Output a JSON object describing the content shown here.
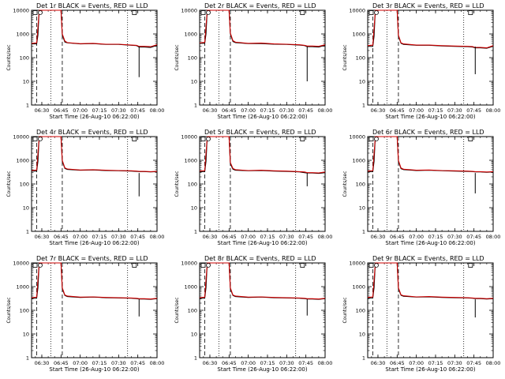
{
  "chart_data": [
    {
      "type": "line",
      "title": "Det 1r BLACK = Events, RED = LLD",
      "xlabel": "Start Time (26-Aug-10 06:22:00)",
      "ylabel": "Counts/sec",
      "x_ticks": [
        "06:30",
        "06:45",
        "07:00",
        "07:15",
        "07:30",
        "07:45",
        "08:00"
      ],
      "y_ticks": [
        "1",
        "10",
        "100",
        "1000",
        "10000"
      ],
      "y_scale": "log",
      "ylim": [
        1,
        10000
      ],
      "x": [
        "06:22",
        "06:26",
        "06:27",
        "06:28",
        "06:30",
        "06:40",
        "06:45",
        "06:46",
        "06:48",
        "06:50",
        "07:00",
        "07:10",
        "07:20",
        "07:30",
        "07:40",
        "07:44",
        "07:46",
        "07:50",
        "07:55",
        "08:00"
      ],
      "series": [
        {
          "name": "Events",
          "color": "#000000",
          "values": [
            380,
            380,
            900,
            10000,
            10000,
            10000,
            10000,
            900,
            450,
            420,
            380,
            390,
            360,
            360,
            330,
            320,
            280,
            280,
            270,
            330
          ]
        },
        {
          "name": "LLD",
          "color": "#cc0000",
          "values": [
            400,
            420,
            2000,
            10000,
            10000,
            10000,
            10000,
            1000,
            500,
            430,
            390,
            400,
            370,
            370,
            340,
            330,
            300,
            300,
            290,
            350
          ]
        }
      ],
      "dip": {
        "x": "07:46",
        "y": 15
      },
      "dotted_lines": [
        "06:37",
        "07:37"
      ],
      "dashed_lines": [
        "06:26",
        "06:46"
      ]
    },
    {
      "type": "line",
      "title": "Det 2r BLACK = Events, RED = LLD",
      "xlabel": "Start Time (26-Aug-10 06:22:00)",
      "ylabel": "Counts/sec",
      "x_ticks": [
        "06:30",
        "06:45",
        "07:00",
        "07:15",
        "07:30",
        "07:45",
        "08:00"
      ],
      "y_ticks": [
        "1",
        "10",
        "100",
        "1000",
        "10000"
      ],
      "y_scale": "log",
      "ylim": [
        1,
        10000
      ],
      "x": [
        "06:22",
        "06:26",
        "06:27",
        "06:28",
        "06:30",
        "06:40",
        "06:45",
        "06:46",
        "06:48",
        "06:50",
        "07:00",
        "07:10",
        "07:20",
        "07:30",
        "07:40",
        "07:44",
        "07:46",
        "07:50",
        "07:55",
        "08:00"
      ],
      "series": [
        {
          "name": "Events",
          "color": "#000000",
          "values": [
            400,
            400,
            1000,
            10000,
            10000,
            10000,
            10000,
            1000,
            480,
            430,
            390,
            390,
            370,
            360,
            340,
            320,
            290,
            290,
            280,
            330
          ]
        },
        {
          "name": "LLD",
          "color": "#cc0000",
          "values": [
            420,
            440,
            2200,
            10000,
            10000,
            10000,
            10000,
            1100,
            520,
            450,
            400,
            410,
            380,
            370,
            350,
            330,
            310,
            310,
            300,
            350
          ]
        }
      ],
      "dip": {
        "x": "07:46",
        "y": 10
      },
      "dotted_lines": [
        "06:37",
        "07:37"
      ],
      "dashed_lines": [
        "06:26",
        "06:46"
      ]
    },
    {
      "type": "line",
      "title": "Det 3r BLACK = Events, RED = LLD",
      "xlabel": "Start Time (26-Aug-10 06:22:00)",
      "ylabel": "Counts/sec",
      "x_ticks": [
        "06:30",
        "06:45",
        "07:00",
        "07:15",
        "07:30",
        "07:45",
        "08:00"
      ],
      "y_ticks": [
        "1",
        "10",
        "100",
        "1000",
        "10000"
      ],
      "y_scale": "log",
      "ylim": [
        1,
        10000
      ],
      "x": [
        "06:22",
        "06:26",
        "06:27",
        "06:28",
        "06:30",
        "06:40",
        "06:45",
        "06:46",
        "06:48",
        "06:50",
        "07:00",
        "07:10",
        "07:20",
        "07:30",
        "07:40",
        "07:44",
        "07:46",
        "07:50",
        "07:55",
        "08:00"
      ],
      "series": [
        {
          "name": "Events",
          "color": "#000000",
          "values": [
            300,
            300,
            800,
            10000,
            10000,
            10000,
            10000,
            800,
            400,
            360,
            330,
            330,
            310,
            300,
            290,
            280,
            260,
            260,
            250,
            300
          ]
        },
        {
          "name": "LLD",
          "color": "#cc0000",
          "values": [
            320,
            340,
            1800,
            10000,
            10000,
            10000,
            10000,
            900,
            420,
            380,
            340,
            340,
            320,
            310,
            300,
            290,
            270,
            270,
            260,
            320
          ]
        }
      ],
      "dip": {
        "x": "07:46",
        "y": 20
      },
      "dotted_lines": [
        "06:37",
        "07:37"
      ],
      "dashed_lines": [
        "06:26",
        "06:46"
      ]
    },
    {
      "type": "line",
      "title": "Det 4r BLACK = Events, RED = LLD",
      "xlabel": "Start Time (26-Aug-10 06:22:00)",
      "ylabel": "Counts/sec",
      "x_ticks": [
        "06:30",
        "06:45",
        "07:00",
        "07:15",
        "07:30",
        "07:45",
        "08:00"
      ],
      "y_ticks": [
        "1",
        "10",
        "100",
        "1000",
        "10000"
      ],
      "y_scale": "log",
      "ylim": [
        1,
        10000
      ],
      "x": [
        "06:22",
        "06:26",
        "06:27",
        "06:28",
        "06:30",
        "06:40",
        "06:45",
        "06:46",
        "06:48",
        "06:50",
        "07:00",
        "07:10",
        "07:20",
        "07:30",
        "07:40",
        "07:44",
        "07:46",
        "07:50",
        "07:55",
        "08:00"
      ],
      "series": [
        {
          "name": "Events",
          "color": "#000000",
          "values": [
            350,
            350,
            900,
            10000,
            10000,
            10000,
            10000,
            900,
            450,
            410,
            380,
            390,
            370,
            360,
            350,
            340,
            330,
            330,
            320,
            330
          ]
        },
        {
          "name": "LLD",
          "color": "#cc0000",
          "values": [
            370,
            390,
            2000,
            10000,
            10000,
            10000,
            10000,
            1000,
            480,
            430,
            390,
            400,
            380,
            370,
            360,
            350,
            340,
            340,
            330,
            340
          ]
        }
      ],
      "dip": {
        "x": "07:46",
        "y": 30
      },
      "dotted_lines": [
        "06:37",
        "07:37"
      ],
      "dashed_lines": [
        "06:26",
        "06:46"
      ]
    },
    {
      "type": "line",
      "title": "Det 5r BLACK = Events, RED = LLD",
      "xlabel": "Start Time (26-Aug-10 06:22:00)",
      "ylabel": "Counts/sec",
      "x_ticks": [
        "06:30",
        "06:45",
        "07:00",
        "07:15",
        "07:30",
        "07:45",
        "08:00"
      ],
      "y_ticks": [
        "1",
        "10",
        "100",
        "1000",
        "10000"
      ],
      "y_scale": "log",
      "ylim": [
        1,
        10000
      ],
      "x": [
        "06:22",
        "06:26",
        "06:27",
        "06:28",
        "06:30",
        "06:40",
        "06:45",
        "06:46",
        "06:48",
        "06:50",
        "07:00",
        "07:10",
        "07:20",
        "07:30",
        "07:40",
        "07:44",
        "07:46",
        "07:50",
        "07:55",
        "08:00"
      ],
      "series": [
        {
          "name": "Events",
          "color": "#000000",
          "values": [
            330,
            330,
            900,
            10000,
            10000,
            10000,
            10000,
            700,
            420,
            380,
            360,
            370,
            350,
            340,
            320,
            300,
            290,
            290,
            280,
            300
          ]
        },
        {
          "name": "LLD",
          "color": "#cc0000",
          "values": [
            350,
            370,
            2000,
            10000,
            10000,
            10000,
            10000,
            800,
            450,
            400,
            370,
            380,
            360,
            350,
            330,
            320,
            300,
            300,
            290,
            320
          ]
        }
      ],
      "dip": {
        "x": "07:46",
        "y": 80
      },
      "dotted_lines": [
        "06:37",
        "07:37"
      ],
      "dashed_lines": [
        "06:26",
        "06:46"
      ]
    },
    {
      "type": "line",
      "title": "Det 6r BLACK = Events, RED = LLD",
      "xlabel": "Start Time (26-Aug-10 06:22:00)",
      "ylabel": "Counts/sec",
      "x_ticks": [
        "06:30",
        "06:45",
        "07:00",
        "07:15",
        "07:30",
        "07:45",
        "08:00"
      ],
      "y_ticks": [
        "1",
        "10",
        "100",
        "1000",
        "10000"
      ],
      "y_scale": "log",
      "ylim": [
        1,
        10000
      ],
      "x": [
        "06:22",
        "06:26",
        "06:27",
        "06:28",
        "06:30",
        "06:40",
        "06:45",
        "06:46",
        "06:48",
        "06:50",
        "07:00",
        "07:10",
        "07:20",
        "07:30",
        "07:40",
        "07:44",
        "07:46",
        "07:50",
        "07:55",
        "08:00"
      ],
      "series": [
        {
          "name": "Events",
          "color": "#000000",
          "values": [
            330,
            330,
            900,
            10000,
            10000,
            10000,
            10000,
            900,
            440,
            400,
            370,
            380,
            360,
            350,
            340,
            330,
            320,
            320,
            310,
            320
          ]
        },
        {
          "name": "LLD",
          "color": "#cc0000",
          "values": [
            350,
            370,
            2000,
            10000,
            10000,
            10000,
            10000,
            1000,
            470,
            420,
            380,
            390,
            370,
            360,
            350,
            340,
            330,
            330,
            320,
            330
          ]
        }
      ],
      "dip": {
        "x": "07:46",
        "y": 40
      },
      "dotted_lines": [
        "06:37",
        "07:37"
      ],
      "dashed_lines": [
        "06:26",
        "06:46"
      ]
    },
    {
      "type": "line",
      "title": "Det 7r BLACK = Events, RED = LLD",
      "xlabel": "Start Time (26-Aug-10 06:22:00)",
      "ylabel": "Counts/sec",
      "x_ticks": [
        "06:30",
        "06:45",
        "07:00",
        "07:15",
        "07:30",
        "07:45",
        "08:00"
      ],
      "y_ticks": [
        "1",
        "10",
        "100",
        "1000",
        "10000"
      ],
      "y_scale": "log",
      "ylim": [
        1,
        10000
      ],
      "x": [
        "06:22",
        "06:26",
        "06:27",
        "06:28",
        "06:30",
        "06:40",
        "06:45",
        "06:46",
        "06:48",
        "06:50",
        "07:00",
        "07:10",
        "07:20",
        "07:30",
        "07:40",
        "07:44",
        "07:46",
        "07:50",
        "07:55",
        "08:00"
      ],
      "series": [
        {
          "name": "Events",
          "color": "#000000",
          "values": [
            320,
            320,
            900,
            10000,
            10000,
            10000,
            10000,
            800,
            420,
            380,
            350,
            360,
            340,
            330,
            320,
            310,
            300,
            300,
            290,
            310
          ]
        },
        {
          "name": "LLD",
          "color": "#cc0000",
          "values": [
            340,
            360,
            2000,
            10000,
            10000,
            10000,
            10000,
            900,
            440,
            400,
            360,
            370,
            350,
            340,
            330,
            320,
            310,
            310,
            300,
            320
          ]
        }
      ],
      "dip": {
        "x": "07:46",
        "y": 55
      },
      "dotted_lines": [
        "06:37",
        "07:37"
      ],
      "dashed_lines": [
        "06:26",
        "06:46"
      ]
    },
    {
      "type": "line",
      "title": "Det 8r BLACK = Events, RED = LLD",
      "xlabel": "Start Time (26-Aug-10 06:22:00)",
      "ylabel": "Counts/sec",
      "x_ticks": [
        "06:30",
        "06:45",
        "07:00",
        "07:15",
        "07:30",
        "07:45",
        "08:00"
      ],
      "y_ticks": [
        "1",
        "10",
        "100",
        "1000",
        "10000"
      ],
      "y_scale": "log",
      "ylim": [
        1,
        10000
      ],
      "x": [
        "06:22",
        "06:26",
        "06:27",
        "06:28",
        "06:30",
        "06:40",
        "06:45",
        "06:46",
        "06:48",
        "06:50",
        "07:00",
        "07:10",
        "07:20",
        "07:30",
        "07:40",
        "07:44",
        "07:46",
        "07:50",
        "07:55",
        "08:00"
      ],
      "series": [
        {
          "name": "Events",
          "color": "#000000",
          "values": [
            320,
            320,
            900,
            10000,
            10000,
            10000,
            10000,
            800,
            420,
            380,
            350,
            360,
            340,
            330,
            320,
            310,
            300,
            300,
            290,
            310
          ]
        },
        {
          "name": "LLD",
          "color": "#cc0000",
          "values": [
            340,
            360,
            2000,
            10000,
            10000,
            10000,
            10000,
            900,
            440,
            400,
            360,
            370,
            350,
            340,
            330,
            320,
            310,
            310,
            300,
            320
          ]
        }
      ],
      "dip": {
        "x": "07:46",
        "y": 60
      },
      "dotted_lines": [
        "06:37",
        "07:37"
      ],
      "dashed_lines": [
        "06:26",
        "06:46"
      ]
    },
    {
      "type": "line",
      "title": "Det 9r BLACK = Events, RED = LLD",
      "xlabel": "Start Time (26-Aug-10 06:22:00)",
      "ylabel": "Counts/sec",
      "x_ticks": [
        "06:30",
        "06:45",
        "07:00",
        "07:15",
        "07:30",
        "07:45",
        "08:00"
      ],
      "y_ticks": [
        "1",
        "10",
        "100",
        "1000",
        "10000"
      ],
      "y_scale": "log",
      "ylim": [
        1,
        10000
      ],
      "x": [
        "06:22",
        "06:26",
        "06:27",
        "06:28",
        "06:30",
        "06:40",
        "06:45",
        "06:46",
        "06:48",
        "06:50",
        "07:00",
        "07:10",
        "07:20",
        "07:30",
        "07:40",
        "07:44",
        "07:46",
        "07:50",
        "07:55",
        "08:00"
      ],
      "series": [
        {
          "name": "Events",
          "color": "#000000",
          "values": [
            330,
            330,
            900,
            10000,
            10000,
            10000,
            10000,
            800,
            430,
            390,
            360,
            370,
            350,
            340,
            330,
            320,
            310,
            310,
            300,
            310
          ]
        },
        {
          "name": "LLD",
          "color": "#cc0000",
          "values": [
            350,
            370,
            2000,
            10000,
            10000,
            10000,
            10000,
            900,
            450,
            410,
            370,
            380,
            360,
            350,
            340,
            330,
            320,
            320,
            310,
            320
          ]
        }
      ],
      "dip": {
        "x": "07:46",
        "y": 50
      },
      "dotted_lines": [
        "06:37",
        "07:37"
      ],
      "dashed_lines": [
        "06:26",
        "06:46"
      ]
    }
  ]
}
